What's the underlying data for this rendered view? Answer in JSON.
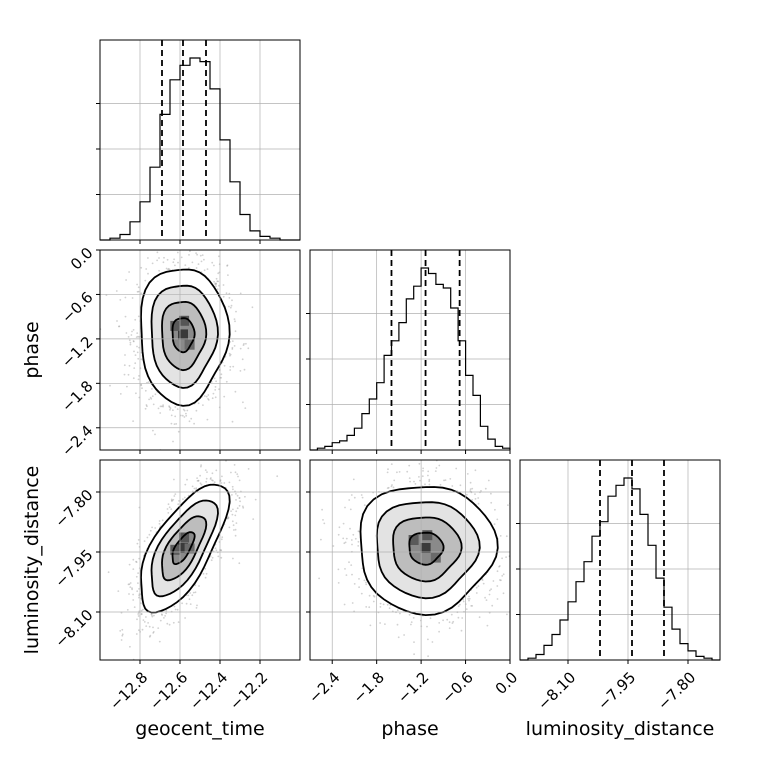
{
  "chart_data": {
    "type": "corner",
    "parameters": [
      "geocent_time",
      "phase",
      "luminosity_distance"
    ],
    "grid": true,
    "quantile_lines": {
      "style": "dashed",
      "fractions": [
        0.16,
        0.5,
        0.84
      ]
    },
    "ranges": {
      "geocent_time": [
        -13.0,
        -12.0
      ],
      "phase": [
        -2.7,
        0.0
      ],
      "luminosity_distance": [
        -8.22,
        -7.72
      ]
    },
    "ticks": {
      "geocent_time": {
        "values": [
          -12.8,
          -12.6,
          -12.4,
          -12.2
        ],
        "labels": [
          "−12.8",
          "−12.6",
          "−12.4",
          "−12.2"
        ]
      },
      "phase": {
        "values": [
          -2.4,
          -1.8,
          -1.2,
          -0.6,
          0.0
        ],
        "labels": [
          "−2.4",
          "−1.8",
          "−1.2",
          "−0.6",
          "0.0"
        ]
      },
      "luminosity_distance": {
        "values": [
          -8.1,
          -7.95,
          -7.8
        ],
        "labels": [
          "−8.10",
          "−7.95",
          "−7.80"
        ]
      }
    },
    "axis_labels": {
      "x_bottom": [
        "geocent_time",
        "phase",
        "luminosity_distance"
      ],
      "y_left": [
        "phase",
        "luminosity_distance"
      ]
    },
    "marginals": {
      "geocent_time": {
        "bin_edges": [
          -13.0,
          -12.95,
          -12.9,
          -12.85,
          -12.8,
          -12.75,
          -12.7,
          -12.65,
          -12.6,
          -12.55,
          -12.5,
          -12.45,
          -12.4,
          -12.35,
          -12.3,
          -12.25,
          -12.2,
          -12.15,
          -12.1,
          -12.05,
          -12.0
        ],
        "heights": [
          0,
          0.01,
          0.03,
          0.1,
          0.21,
          0.4,
          0.69,
          0.88,
          0.96,
          1.0,
          0.98,
          0.83,
          0.55,
          0.32,
          0.14,
          0.05,
          0.02,
          0.01,
          0,
          0
        ],
        "quantiles": [
          -12.69,
          -12.585,
          -12.47
        ]
      },
      "phase": {
        "bin_edges": [
          -2.7,
          -2.6,
          -2.5,
          -2.4,
          -2.3,
          -2.2,
          -2.1,
          -2.0,
          -1.9,
          -1.8,
          -1.7,
          -1.6,
          -1.5,
          -1.4,
          -1.3,
          -1.2,
          -1.1,
          -1.0,
          -0.9,
          -0.8,
          -0.7,
          -0.6,
          -0.5,
          -0.4,
          -0.3,
          -0.2,
          -0.1,
          0.0
        ],
        "heights": [
          0,
          0.01,
          0.02,
          0.04,
          0.05,
          0.08,
          0.12,
          0.2,
          0.28,
          0.37,
          0.52,
          0.6,
          0.7,
          0.83,
          0.9,
          1.0,
          0.97,
          0.91,
          0.89,
          0.78,
          0.6,
          0.41,
          0.3,
          0.13,
          0.06,
          0.02,
          0.01
        ],
        "quantiles": [
          -1.6,
          -1.14,
          -0.68
        ]
      },
      "luminosity_distance": {
        "bin_edges": [
          -8.22,
          -8.2,
          -8.18,
          -8.16,
          -8.14,
          -8.12,
          -8.1,
          -8.08,
          -8.06,
          -8.04,
          -8.02,
          -8.0,
          -7.98,
          -7.96,
          -7.94,
          -7.92,
          -7.9,
          -7.88,
          -7.86,
          -7.84,
          -7.82,
          -7.8,
          -7.78,
          -7.76,
          -7.74,
          -7.72
        ],
        "heights": [
          0,
          0.01,
          0.03,
          0.08,
          0.14,
          0.22,
          0.32,
          0.43,
          0.54,
          0.68,
          0.76,
          0.9,
          0.96,
          1.0,
          0.94,
          0.8,
          0.63,
          0.45,
          0.29,
          0.17,
          0.09,
          0.05,
          0.02,
          0.01,
          0
        ],
        "quantiles": [
          -8.02,
          -7.94,
          -7.86
        ]
      }
    },
    "joints": [
      {
        "x": "geocent_time",
        "y": "phase",
        "mean": [
          -12.585,
          -1.14
        ],
        "sd": [
          0.11,
          0.46
        ],
        "correlation": 0.0,
        "contours_sigma": [
          0.5,
          1.0,
          1.5,
          2.0
        ]
      },
      {
        "x": "geocent_time",
        "y": "luminosity_distance",
        "mean": [
          -12.585,
          -7.94
        ],
        "sd": [
          0.11,
          0.08
        ],
        "correlation": 0.68,
        "contours_sigma": [
          0.5,
          1.0,
          1.5,
          2.0
        ]
      },
      {
        "x": "phase",
        "y": "luminosity_distance",
        "mean": [
          -1.14,
          -7.94
        ],
        "sd": [
          0.46,
          0.08
        ],
        "correlation": 0.0,
        "contours_sigma": [
          0.5,
          1.0,
          1.5,
          2.0
        ]
      }
    ]
  }
}
